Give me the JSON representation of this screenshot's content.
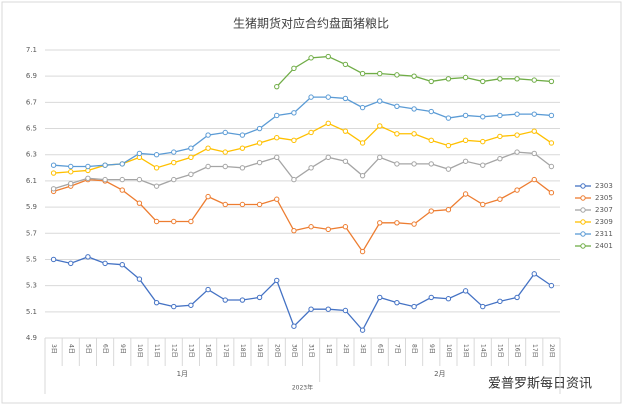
{
  "chart_data": {
    "type": "line",
    "title": "生猪期货对应合约盘面猪粮比",
    "categories": [
      "3日",
      "4日",
      "5日",
      "6日",
      "9日",
      "10日",
      "11日",
      "12日",
      "13日",
      "16日",
      "17日",
      "18日",
      "19日",
      "20日",
      "30日",
      "31日",
      "1日",
      "2日",
      "3日",
      "6日",
      "7日",
      "8日",
      "9日",
      "10日",
      "13日",
      "14日",
      "15日",
      "16日",
      "17日",
      "20日"
    ],
    "category_groups": [
      {
        "label": "1月",
        "size": 16
      },
      {
        "label": "2月",
        "size": 14
      }
    ],
    "year_label": "2023年",
    "watermark": "爱普罗斯每日资讯",
    "ylim": [
      4.9,
      7.1
    ],
    "yticks": [
      4.9,
      5.1,
      5.3,
      5.5,
      5.7,
      5.9,
      6.1,
      6.3,
      6.5,
      6.7,
      6.9,
      7.1
    ],
    "grid": true,
    "legend": "right",
    "series": [
      {
        "name": "2303",
        "color": "#4472c4",
        "values": [
          5.5,
          5.47,
          5.52,
          5.47,
          5.46,
          5.35,
          5.17,
          5.14,
          5.15,
          5.27,
          5.19,
          5.19,
          5.21,
          5.34,
          4.99,
          5.12,
          5.12,
          5.11,
          4.96,
          5.21,
          5.17,
          5.14,
          5.21,
          5.2,
          5.26,
          5.14,
          5.18,
          5.21,
          5.39,
          5.3
        ]
      },
      {
        "name": "2305",
        "color": "#ed7d31",
        "values": [
          6.02,
          6.06,
          6.11,
          6.1,
          6.03,
          5.93,
          5.79,
          5.79,
          5.79,
          5.98,
          5.92,
          5.92,
          5.92,
          5.96,
          5.72,
          5.75,
          5.73,
          5.75,
          5.56,
          5.78,
          5.78,
          5.77,
          5.87,
          5.88,
          6.0,
          5.92,
          5.96,
          6.03,
          6.11,
          6.01
        ]
      },
      {
        "name": "2307",
        "color": "#a5a5a5",
        "values": [
          6.04,
          6.08,
          6.12,
          6.11,
          6.11,
          6.11,
          6.06,
          6.11,
          6.15,
          6.21,
          6.21,
          6.2,
          6.24,
          6.28,
          6.11,
          6.2,
          6.28,
          6.25,
          6.14,
          6.28,
          6.23,
          6.23,
          6.23,
          6.19,
          6.25,
          6.22,
          6.27,
          6.32,
          6.31,
          6.21
        ]
      },
      {
        "name": "2309",
        "color": "#ffc000",
        "values": [
          6.16,
          6.17,
          6.18,
          6.22,
          6.23,
          6.28,
          6.2,
          6.24,
          6.28,
          6.35,
          6.32,
          6.35,
          6.39,
          6.43,
          6.41,
          6.47,
          6.54,
          6.48,
          6.39,
          6.52,
          6.46,
          6.46,
          6.41,
          6.37,
          6.41,
          6.4,
          6.44,
          6.45,
          6.48,
          6.39
        ]
      },
      {
        "name": "2311",
        "color": "#5b9bd5",
        "values": [
          6.22,
          6.21,
          6.21,
          6.22,
          6.23,
          6.31,
          6.3,
          6.32,
          6.35,
          6.45,
          6.47,
          6.45,
          6.5,
          6.6,
          6.62,
          6.74,
          6.74,
          6.73,
          6.66,
          6.71,
          6.67,
          6.65,
          6.63,
          6.58,
          6.6,
          6.59,
          6.6,
          6.61,
          6.61,
          6.6
        ]
      },
      {
        "name": "2401",
        "color": "#70ad47",
        "values": [
          null,
          null,
          null,
          null,
          null,
          null,
          null,
          null,
          null,
          null,
          null,
          null,
          null,
          6.82,
          6.96,
          7.04,
          7.05,
          6.99,
          6.92,
          6.92,
          6.91,
          6.9,
          6.86,
          6.88,
          6.89,
          6.86,
          6.88,
          6.88,
          6.87,
          6.86
        ]
      }
    ]
  }
}
